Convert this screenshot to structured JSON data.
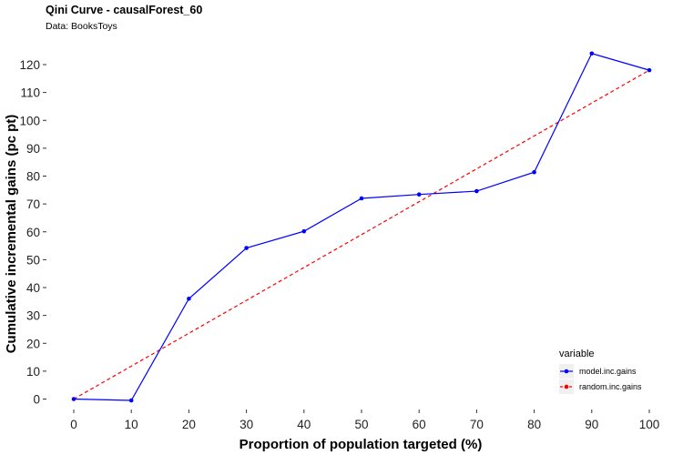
{
  "chart_data": {
    "type": "line",
    "title": "Qini Curve -  causalForest_60",
    "subtitle": "Data: BooksToys",
    "xlabel": "Proportion of population targeted (%)",
    "ylabel": "Cumulative incremental gains (pc pt)",
    "x": [
      0,
      10,
      20,
      30,
      40,
      50,
      60,
      70,
      80,
      90,
      100
    ],
    "xlim": [
      0,
      100
    ],
    "ylim": [
      0,
      120
    ],
    "x_ticks": [
      "0",
      "10",
      "20",
      "30",
      "40",
      "50",
      "60",
      "70",
      "80",
      "90",
      "100"
    ],
    "y_ticks": [
      "0",
      "10",
      "20",
      "30",
      "40",
      "50",
      "60",
      "70",
      "80",
      "90",
      "100",
      "110",
      "120"
    ],
    "grid": false,
    "legend": {
      "title": "variable",
      "position": "bottom-right"
    },
    "series": [
      {
        "name": "model.inc.gains",
        "color": "#0000ff",
        "dash": "solid",
        "values": [
          0,
          -0.5,
          36,
          54.2,
          60.2,
          72,
          73.4,
          74.6,
          81.4,
          124,
          118
        ]
      },
      {
        "name": "random.inc.gains",
        "color": "#ff0000",
        "dash": "dashed",
        "values": [
          0,
          11.8,
          23.6,
          35.4,
          47.2,
          59,
          70.8,
          82.6,
          94.4,
          106.2,
          118
        ]
      }
    ]
  }
}
